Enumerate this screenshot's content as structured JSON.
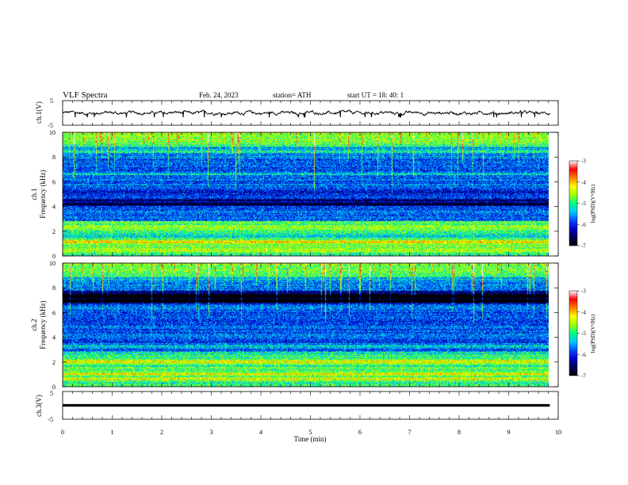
{
  "header": {
    "title": "VLF  Spectra",
    "date": "Feb. 24, 2023",
    "station": "station= ATH",
    "start": "start  UT  =    18: 40: 1"
  },
  "colors": {
    "background": "#ffffff",
    "trace": "#000000",
    "colormap": [
      "#000000",
      "#00005a",
      "#0000c8",
      "#0050ff",
      "#00c8ff",
      "#00ff80",
      "#a0ff00",
      "#ffff00",
      "#ff8000",
      "#ff0000",
      "#ffffff"
    ]
  },
  "chart_data": [
    {
      "type": "line",
      "ylabel": "ch.1(V)",
      "ylim": [
        -5,
        5
      ],
      "yticks": [
        "5",
        "-5"
      ],
      "xlim": [
        0,
        10
      ],
      "description_values": {
        "baseline_V": 0,
        "noise_amplitude_V": 0.8,
        "spikes_down_V": -1.8
      }
    },
    {
      "type": "heatmap",
      "ylabel": "ch.1\nFrequency  (kHz)",
      "ylim": [
        0,
        10
      ],
      "yticks": [
        "0",
        "2",
        "4",
        "6",
        "8",
        "10"
      ],
      "xlim": [
        0,
        9.83
      ],
      "colorbar": {
        "label": "log(PSD)(V²/Hz)",
        "range": [
          -7,
          -3
        ],
        "ticks": [
          "-3",
          "-4",
          "-5",
          "-6",
          "-7"
        ]
      },
      "bands_kHz": [
        {
          "f": 0.4,
          "level": -4.2
        },
        {
          "f": 0.75,
          "level": -4.6
        },
        {
          "f": 1.1,
          "level": -4.1
        },
        {
          "f": 1.6,
          "level": -5.2
        },
        {
          "f": 2.0,
          "level": -5.0
        },
        {
          "f": 2.3,
          "level": -4.4
        },
        {
          "f": 3.5,
          "level": -5.6
        },
        {
          "f": 4.2,
          "level": -6.9
        },
        {
          "f": 4.5,
          "level": -6.7
        },
        {
          "f": 5.1,
          "level": -6.2
        },
        {
          "f": 6.6,
          "level": -5.4
        },
        {
          "f": 8.5,
          "level": -5.0
        }
      ]
    },
    {
      "type": "heatmap",
      "ylabel": "ch.2\nFrequency  (kHz)",
      "ylim": [
        0,
        10
      ],
      "yticks": [
        "0",
        "2",
        "4",
        "6",
        "8",
        "10"
      ],
      "xlim": [
        0,
        9.83
      ],
      "colorbar": {
        "label": "log(PSD)(V²/Hz)",
        "range": [
          -7,
          -3
        ],
        "ticks": [
          "-3",
          "-4",
          "-5",
          "-6",
          "-7"
        ]
      },
      "bands_kHz": [
        {
          "f": 0.6,
          "level": -4.5
        },
        {
          "f": 1.0,
          "level": -4.2
        },
        {
          "f": 1.5,
          "level": -4.9
        },
        {
          "f": 2.0,
          "level": -4.3
        },
        {
          "f": 2.6,
          "level": -5.1
        },
        {
          "f": 3.2,
          "level": -5.2
        },
        {
          "f": 4.8,
          "level": -5.8
        },
        {
          "f": 6.9,
          "level": -6.6
        },
        {
          "f": 7.3,
          "level": -6.8
        }
      ]
    },
    {
      "type": "line",
      "ylabel": "ch.3(V)",
      "ylim": [
        -5,
        5
      ],
      "yticks": [
        "5",
        "-5"
      ],
      "xlim": [
        0,
        10
      ],
      "xlabel": "Time  (min)",
      "xticks": [
        "0",
        "1",
        "2",
        "3",
        "4",
        "5",
        "6",
        "7",
        "8",
        "9",
        "10"
      ],
      "description_values": {
        "constant_V": 0
      }
    }
  ]
}
